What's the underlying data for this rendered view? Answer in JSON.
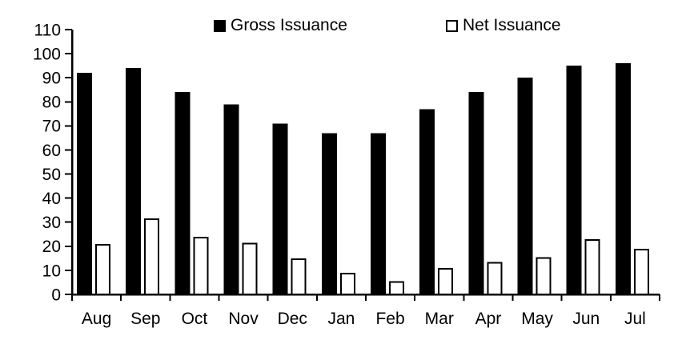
{
  "chart_data": {
    "type": "bar",
    "title": "",
    "xlabel": "",
    "ylabel": "",
    "categories": [
      "Aug",
      "Sep",
      "Oct",
      "Nov",
      "Dec",
      "Jan",
      "Feb",
      "Mar",
      "Apr",
      "May",
      "Jun",
      "Jul"
    ],
    "series": [
      {
        "name": "Gross Issuance",
        "fill": "#000000",
        "stroke": "#000000",
        "values": [
          92,
          94,
          84,
          79,
          71,
          67,
          67,
          77,
          84,
          90,
          95,
          96
        ]
      },
      {
        "name": "Net Issuance",
        "fill": "#ffffff",
        "stroke": "#000000",
        "values": [
          21,
          31.5,
          24,
          21.5,
          15,
          9,
          5.5,
          11,
          13.5,
          15.5,
          23,
          19
        ]
      }
    ],
    "ylim": [
      0,
      110
    ],
    "ytick_step": 10,
    "ytick_labels": [
      "0",
      "10",
      "20",
      "30",
      "40",
      "50",
      "60",
      "70",
      "80",
      "90",
      "100",
      "110"
    ],
    "grid": false,
    "legend_position": "top-inside",
    "axis_color": "#000000",
    "text_color": "#000000",
    "background_color": "#ffffff"
  }
}
